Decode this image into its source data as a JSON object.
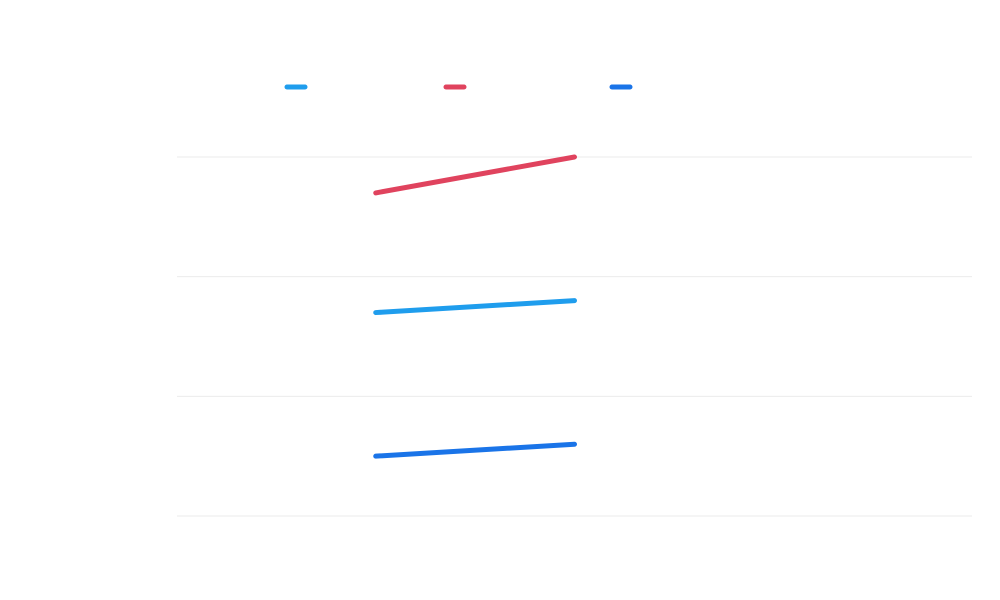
{
  "chart_data": {
    "type": "line",
    "title": "",
    "xlabel": "",
    "ylabel": "",
    "x": [
      1,
      2
    ],
    "xlim": [
      0,
      4
    ],
    "ylim": [
      0,
      3
    ],
    "grid": true,
    "legend": "top-left",
    "series": [
      {
        "color": "#1f9ded",
        "values": [
          1.7,
          1.8
        ]
      },
      {
        "color": "#e0435e",
        "values": [
          2.7,
          3.0
        ]
      },
      {
        "color": "#1a74e8",
        "values": [
          0.5,
          0.6
        ]
      }
    ]
  }
}
